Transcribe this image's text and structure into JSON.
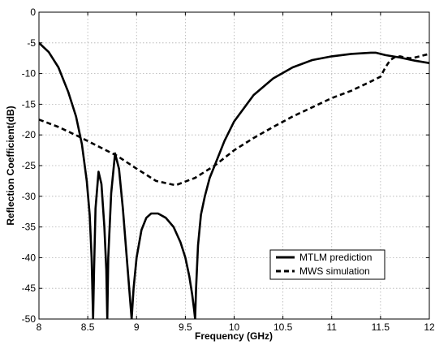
{
  "chart_data": {
    "type": "line",
    "title": "",
    "xlabel": "Frequency (GHz)",
    "ylabel": "Reflection Coefficient(dB)",
    "xlim": [
      8,
      12
    ],
    "ylim": [
      -50,
      0
    ],
    "x_ticks": [
      8,
      8.5,
      9,
      9.5,
      10,
      10.5,
      11,
      11.5,
      12
    ],
    "y_ticks": [
      0,
      -5,
      -10,
      -15,
      -20,
      -25,
      -30,
      -35,
      -40,
      -45,
      -50
    ],
    "x_tick_labels": [
      "8",
      "8.5",
      "9",
      "9.5",
      "10",
      "10.5",
      "11",
      "11.5",
      "12"
    ],
    "y_tick_labels": [
      "0",
      "-5",
      "-10",
      "-15",
      "-20",
      "-25",
      "-30",
      "-35",
      "-40",
      "-45",
      "-50"
    ],
    "grid": true,
    "legend_position": "bottom-right",
    "series": [
      {
        "name": "MTLM prediction",
        "style": "solid",
        "color": "#000000",
        "x": [
          8.0,
          8.1,
          8.2,
          8.3,
          8.38,
          8.44,
          8.49,
          8.52,
          8.54,
          8.555,
          8.565,
          8.58,
          8.61,
          8.64,
          8.67,
          8.69,
          8.7,
          8.71,
          8.74,
          8.78,
          8.82,
          8.86,
          8.9,
          8.93,
          8.95,
          8.97,
          9.0,
          9.05,
          9.1,
          9.15,
          9.22,
          9.3,
          9.38,
          9.45,
          9.5,
          9.54,
          9.57,
          9.59,
          9.6,
          9.61,
          9.63,
          9.66,
          9.7,
          9.75,
          9.8,
          9.9,
          10.0,
          10.2,
          10.4,
          10.6,
          10.8,
          11.0,
          11.2,
          11.3,
          11.4,
          11.45,
          11.55,
          11.7,
          11.85,
          12.0
        ],
        "y": [
          -5.0,
          -6.5,
          -9.0,
          -13.0,
          -17.0,
          -21.5,
          -27.5,
          -33.0,
          -40.0,
          -50.0,
          -42.0,
          -32.0,
          -26.0,
          -28.0,
          -35.0,
          -42.0,
          -50.0,
          -40.0,
          -29.5,
          -23.0,
          -25.5,
          -32.0,
          -40.0,
          -46.0,
          -50.0,
          -45.0,
          -40.0,
          -35.5,
          -33.5,
          -32.8,
          -32.8,
          -33.5,
          -35.0,
          -37.5,
          -40.0,
          -43.0,
          -46.0,
          -48.5,
          -50.0,
          -45.0,
          -38.0,
          -33.0,
          -30.0,
          -27.0,
          -25.0,
          -21.0,
          -17.8,
          -13.5,
          -10.8,
          -9.0,
          -7.8,
          -7.2,
          -6.8,
          -6.7,
          -6.6,
          -6.6,
          -7.0,
          -7.4,
          -7.9,
          -8.3
        ]
      },
      {
        "name": "MWS simulation",
        "style": "dashed",
        "color": "#000000",
        "x": [
          8.0,
          8.2,
          8.4,
          8.6,
          8.8,
          9.0,
          9.2,
          9.4,
          9.6,
          9.8,
          10.0,
          10.2,
          10.4,
          10.6,
          10.8,
          11.0,
          11.2,
          11.4,
          11.5,
          11.55,
          11.6,
          11.65,
          11.7,
          11.75,
          11.8,
          11.85,
          11.9,
          12.0
        ],
        "y": [
          -17.5,
          -18.7,
          -20.2,
          -21.8,
          -23.4,
          -25.5,
          -27.5,
          -28.2,
          -27.0,
          -25.0,
          -22.5,
          -20.5,
          -18.7,
          -17.0,
          -15.5,
          -14.0,
          -12.8,
          -11.3,
          -10.5,
          -9.0,
          -7.8,
          -7.3,
          -7.2,
          -7.4,
          -7.5,
          -7.4,
          -7.2,
          -6.8
        ]
      }
    ]
  }
}
